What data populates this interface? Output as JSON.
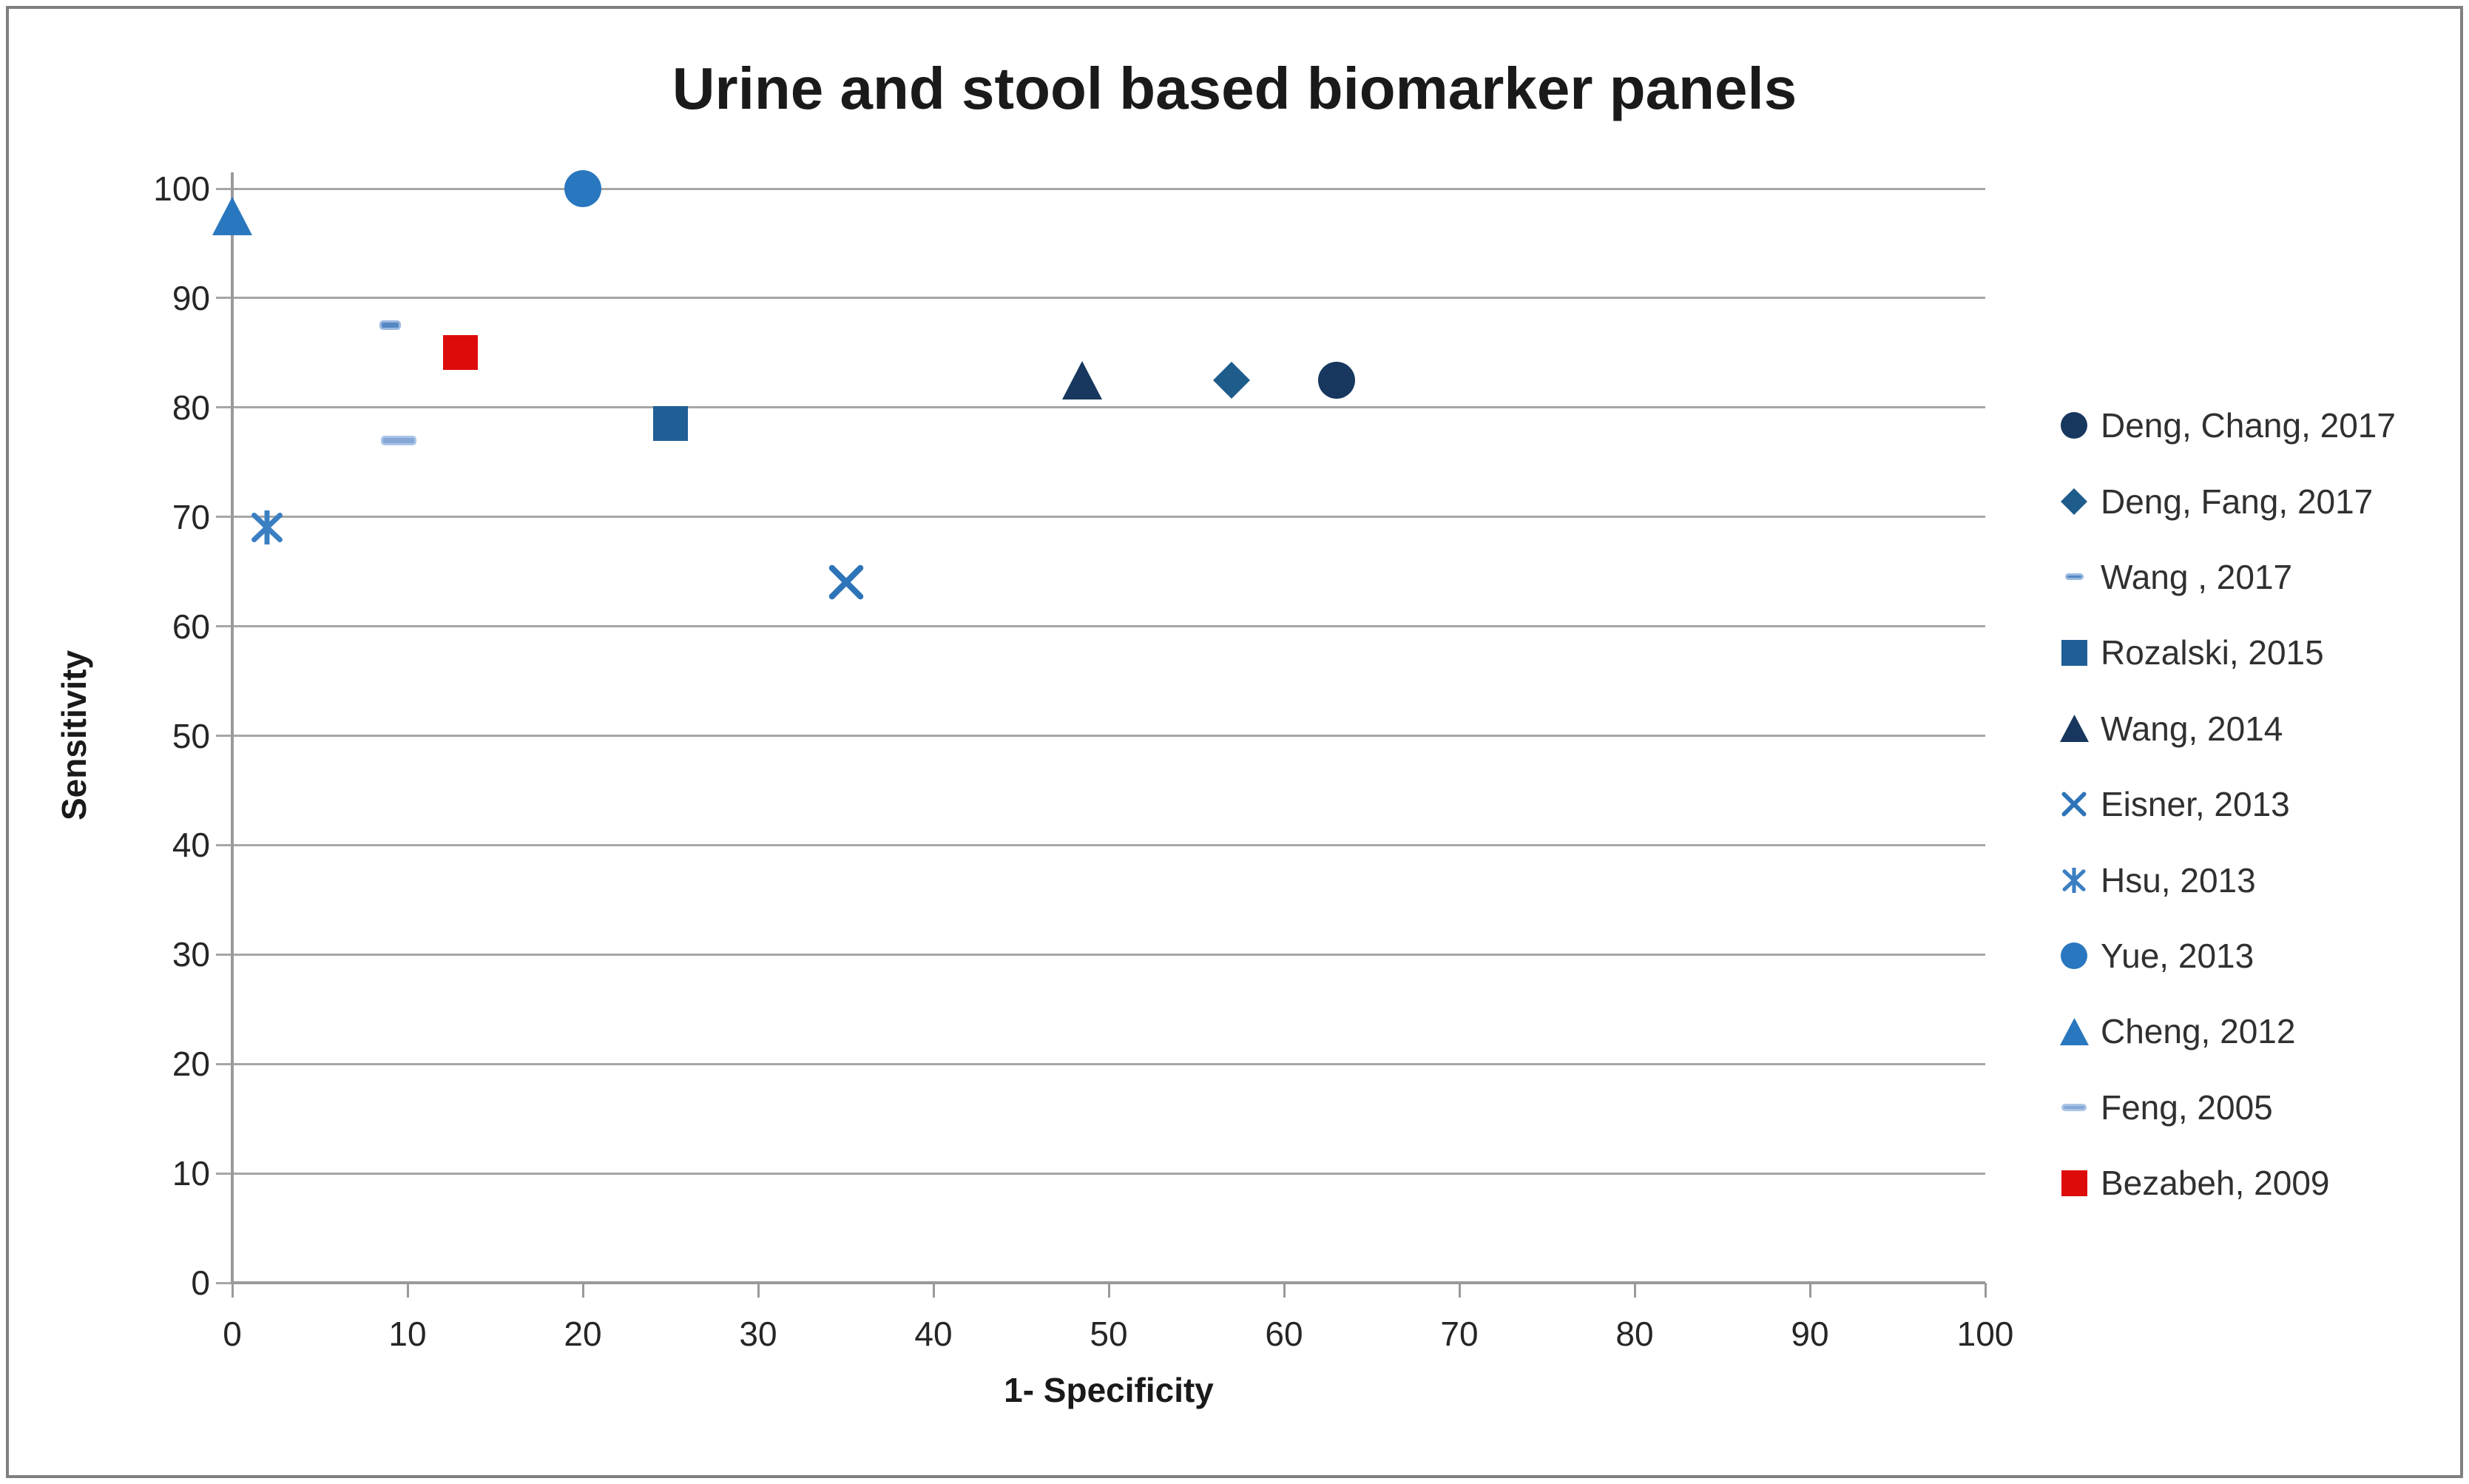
{
  "chart_data": {
    "type": "scatter",
    "title": "Urine and stool based biomarker panels",
    "xlabel": "1- Specificity",
    "ylabel": "Sensitivity",
    "xlim": [
      0,
      100
    ],
    "ylim": [
      0,
      100
    ],
    "x_ticks": [
      0,
      10,
      20,
      30,
      40,
      50,
      60,
      70,
      80,
      90,
      100
    ],
    "y_ticks": [
      0,
      10,
      20,
      30,
      40,
      50,
      60,
      70,
      80,
      90,
      100
    ],
    "grid": "horizontal-only",
    "legend_position": "right",
    "colors": {
      "gridline": "#a6a6a6",
      "axis": "#9a9a9a",
      "title_text": "#1a1a1a",
      "tick_text": "#262626",
      "legend_text": "#303030"
    },
    "series": [
      {
        "name": "Deng, Chang, 2017",
        "marker": "circle",
        "color": "#17375E",
        "points": [
          [
            63,
            82.5
          ]
        ]
      },
      {
        "name": "Deng, Fang, 2017",
        "marker": "diamond",
        "color": "#1E5C8B",
        "points": [
          [
            57,
            82.5
          ]
        ]
      },
      {
        "name": "Wang , 2017",
        "marker": "dash-small",
        "color": "#5588C4",
        "border": "#9BB9E0",
        "points": [
          [
            9,
            87.5
          ]
        ]
      },
      {
        "name": "Rozalski, 2015",
        "marker": "square",
        "color": "#205E96",
        "points": [
          [
            25,
            78.5
          ]
        ]
      },
      {
        "name": "Wang, 2014",
        "marker": "triangle",
        "color": "#17375E",
        "points": [
          [
            48.5,
            82.5
          ]
        ]
      },
      {
        "name": "Eisner, 2013",
        "marker": "x",
        "color": "#2E74B8",
        "points": [
          [
            35,
            64
          ]
        ]
      },
      {
        "name": "Hsu, 2013",
        "marker": "asterisk",
        "color": "#3A7FC2",
        "points": [
          [
            2,
            69
          ]
        ]
      },
      {
        "name": "Yue, 2013",
        "marker": "circle",
        "color": "#2977BE",
        "points": [
          [
            20,
            100
          ]
        ]
      },
      {
        "name": "Cheng, 2012",
        "marker": "triangle",
        "color": "#2977BE",
        "points": [
          [
            0,
            97.5
          ]
        ]
      },
      {
        "name": "Feng, 2005",
        "marker": "dash",
        "color": "#84A7D6",
        "border": "#A9C4E6",
        "points": [
          [
            9.5,
            77
          ]
        ]
      },
      {
        "name": "Bezabeh, 2009",
        "marker": "square",
        "color": "#DE0B0B",
        "points": [
          [
            13,
            85
          ]
        ]
      }
    ]
  }
}
